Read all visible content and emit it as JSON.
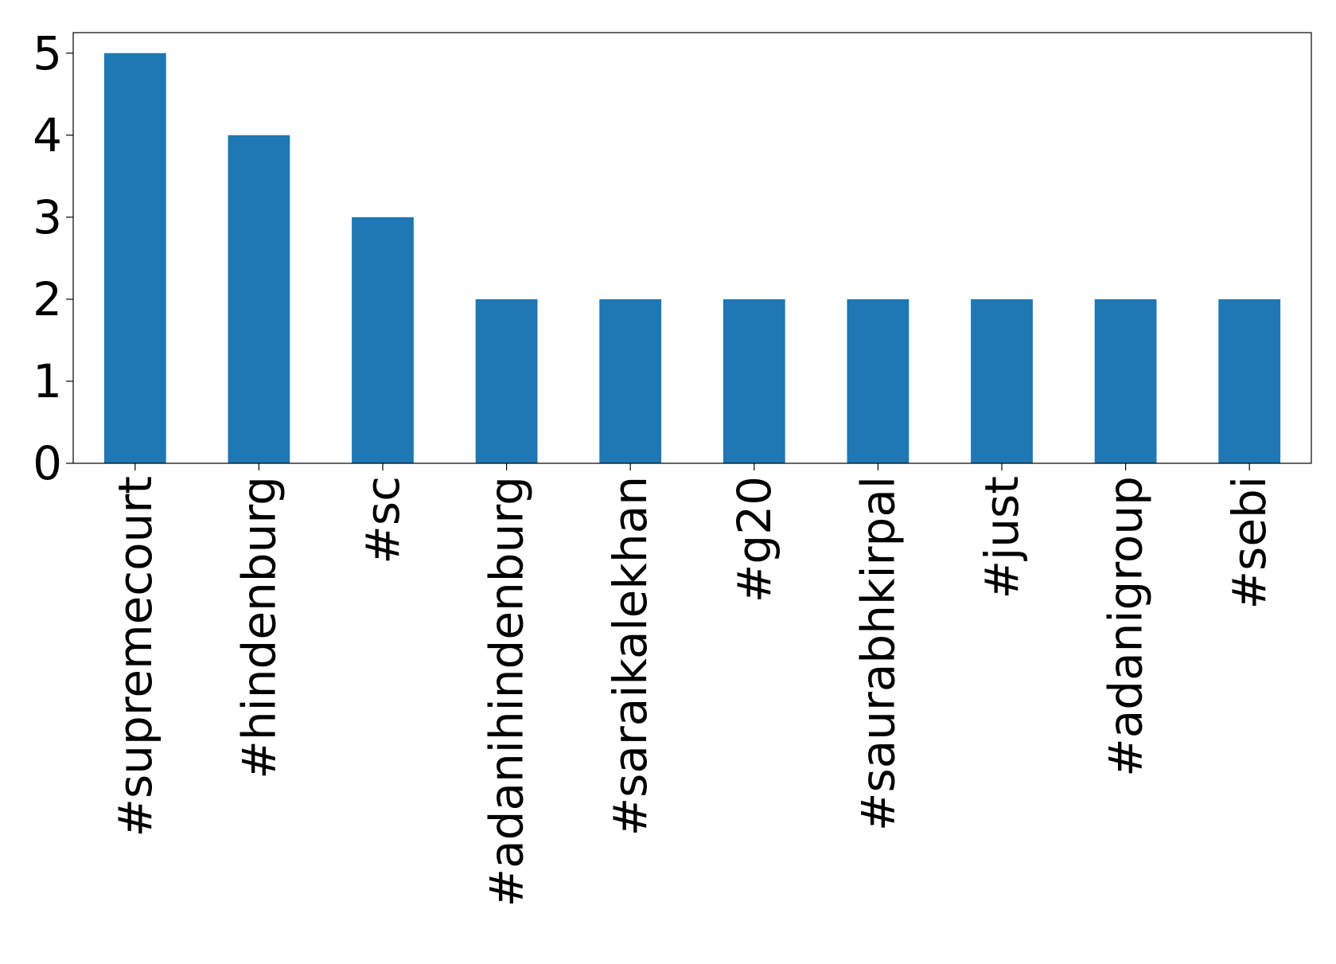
{
  "chart_data": {
    "type": "bar",
    "categories": [
      "#supremecourt",
      "#hindenburg",
      "#sc",
      "#adanihindenburg",
      "#saraikalekhan",
      "#g20",
      "#saurabhkirpal",
      "#just",
      "#adanigroup",
      "#sebi"
    ],
    "values": [
      5,
      4,
      3,
      2,
      2,
      2,
      2,
      2,
      2,
      2
    ],
    "color": "#1f77b4",
    "ylim": [
      0,
      5.25
    ],
    "yticks": [
      0,
      1,
      2,
      3,
      4,
      5
    ],
    "grid": false
  }
}
